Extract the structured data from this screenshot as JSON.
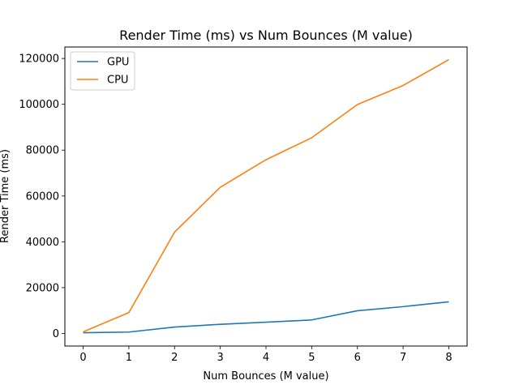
{
  "chart_data": {
    "type": "line",
    "title": "Render Time (ms) vs Num Bounces (M value)",
    "xlabel": "Num Bounces (M value)",
    "ylabel": "Render Time (ms)",
    "x": [
      0,
      1,
      2,
      3,
      4,
      5,
      6,
      7,
      8
    ],
    "xlim": [
      -0.4,
      8.4
    ],
    "ylim": [
      -5500,
      125000
    ],
    "xticks": [
      0,
      1,
      2,
      3,
      4,
      5,
      6,
      7,
      8
    ],
    "yticks": [
      0,
      20000,
      40000,
      60000,
      80000,
      100000,
      120000
    ],
    "grid": false,
    "legend_position": "top-left",
    "series": [
      {
        "name": "GPU",
        "color": "#1f77b4",
        "values": [
          300,
          600,
          2800,
          4000,
          4900,
          5900,
          9900,
          11700,
          13800
        ]
      },
      {
        "name": "CPU",
        "color": "#ff7f0e",
        "values": [
          700,
          9100,
          44200,
          63800,
          75800,
          85400,
          99900,
          108200,
          119500
        ]
      }
    ]
  }
}
